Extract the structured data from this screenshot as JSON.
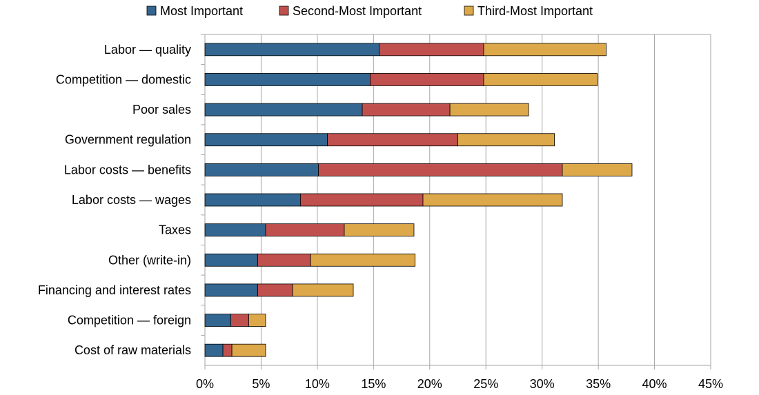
{
  "chart_data": {
    "type": "bar",
    "orientation": "horizontal",
    "stacked": true,
    "categories": [
      "Labor — quality",
      "Competition — domestic",
      "Poor sales",
      "Government regulation",
      "Labor costs — benefits",
      "Labor costs — wages",
      "Taxes",
      "Other (write-in)",
      "Financing and interest rates",
      "Competition — foreign",
      "Cost of raw materials"
    ],
    "series": [
      {
        "name": "Most Important",
        "color": "#336690",
        "values": [
          15.5,
          14.7,
          14.0,
          10.9,
          10.1,
          8.5,
          5.4,
          4.7,
          4.7,
          2.3,
          1.6
        ]
      },
      {
        "name": "Second-Most Important",
        "color": "#C0504D",
        "values": [
          9.3,
          10.1,
          7.8,
          11.6,
          21.7,
          10.9,
          7.0,
          4.7,
          3.1,
          1.6,
          0.8
        ]
      },
      {
        "name": "Third-Most Important",
        "color": "#DCA84A",
        "values": [
          10.9,
          10.1,
          7.0,
          8.6,
          6.2,
          12.4,
          6.2,
          9.3,
          5.4,
          1.5,
          3.0
        ]
      }
    ],
    "xlim": [
      0,
      45
    ],
    "xticks": [
      "0%",
      "5%",
      "10%",
      "15%",
      "20%",
      "25%",
      "30%",
      "35%",
      "40%",
      "45%"
    ],
    "grid": "vertical",
    "legend": "top",
    "title": "",
    "xlabel": "",
    "ylabel": ""
  }
}
